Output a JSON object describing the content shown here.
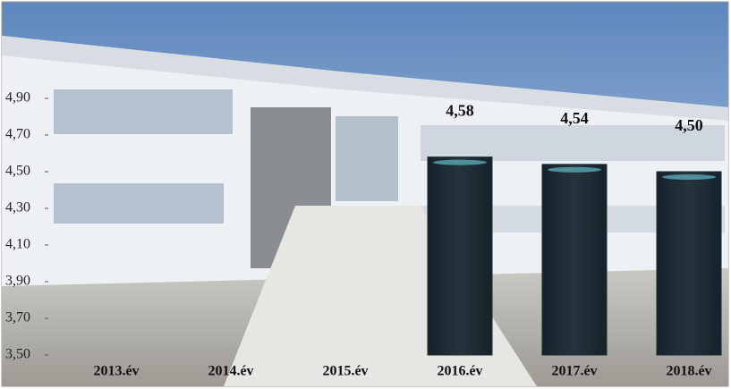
{
  "chart_data": {
    "type": "bar",
    "categories": [
      "2013.év",
      "2014.év",
      "2015.év",
      "2016.év",
      "2017.év",
      "2018.év"
    ],
    "values": [
      null,
      null,
      null,
      4.58,
      4.54,
      4.5
    ],
    "value_labels": [
      null,
      null,
      null,
      "4,58",
      "4,54",
      "4,50"
    ],
    "color": "#1f2c33",
    "ylim": [
      3.5,
      4.9
    ],
    "yticks": [
      {
        "value": 3.5,
        "label": "3,50"
      },
      {
        "value": 3.7,
        "label": "3,70"
      },
      {
        "value": 3.9,
        "label": "3,90"
      },
      {
        "value": 4.1,
        "label": "4,10"
      },
      {
        "value": 4.3,
        "label": "4,30"
      },
      {
        "value": 4.5,
        "label": "4,50"
      },
      {
        "value": 4.7,
        "label": "4,70"
      },
      {
        "value": 4.9,
        "label": "4,90"
      }
    ]
  }
}
